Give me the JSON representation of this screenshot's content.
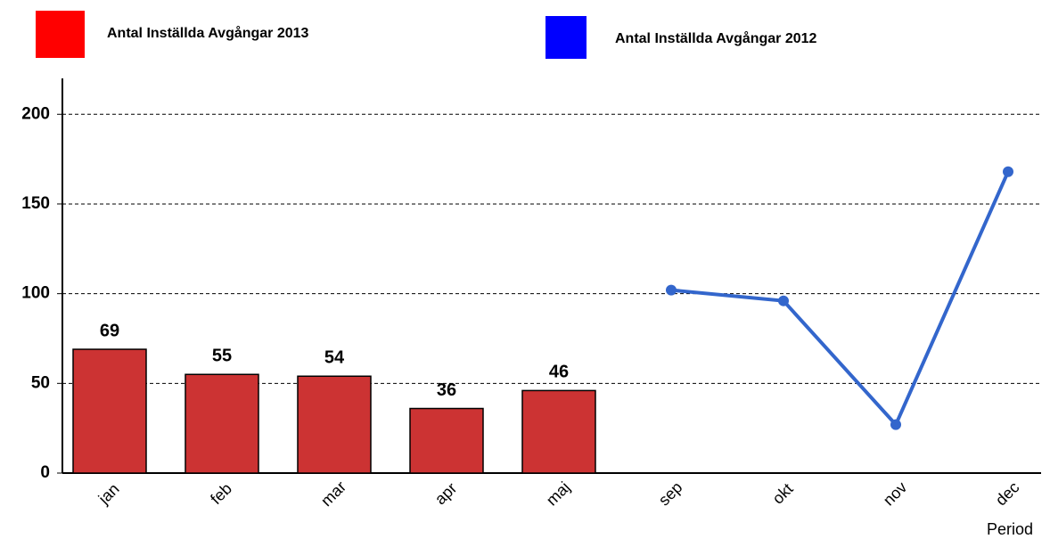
{
  "chart_data": {
    "type": "bar-line",
    "x_label": "Period",
    "categories": [
      "jan",
      "feb",
      "mar",
      "apr",
      "maj",
      "sep",
      "okt",
      "nov",
      "dec"
    ],
    "series": [
      {
        "name": "Antal Inställda Avgångar 2013",
        "type": "bar",
        "color": "#cc3333",
        "legend_color": "#ff0000",
        "values": [
          69,
          55,
          54,
          36,
          46,
          null,
          null,
          null,
          null
        ]
      },
      {
        "name": "Antal Inställda Avgångar 2012",
        "type": "line",
        "color": "#3366cc",
        "legend_color": "#0000ff",
        "values": [
          null,
          null,
          null,
          null,
          null,
          102,
          96,
          27,
          168
        ]
      }
    ],
    "ylim": [
      0,
      220
    ],
    "yticks": [
      0,
      50,
      100,
      150,
      200
    ],
    "grid": true
  }
}
